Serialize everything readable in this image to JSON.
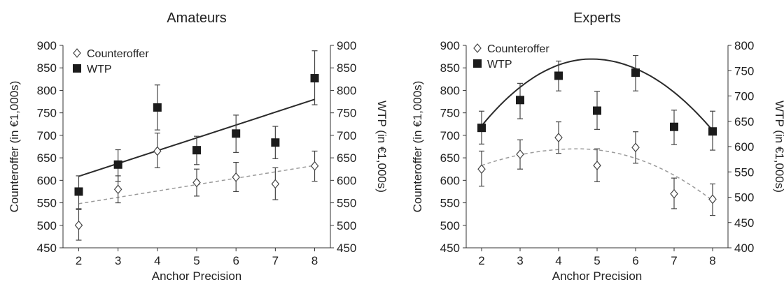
{
  "chart_data": [
    {
      "type": "scatter",
      "title": "Amateurs",
      "xlabel": "Anchor Precision",
      "ylabel": "Counteroffer (in €1,000s)",
      "ylabel_right": "WTP (in €1,000s)",
      "x": [
        2,
        3,
        4,
        5,
        6,
        7,
        8
      ],
      "xlim": [
        1.6,
        8.4
      ],
      "xticks": [
        2,
        3,
        4,
        5,
        6,
        7,
        8
      ],
      "ylim": [
        450,
        900
      ],
      "yticks": [
        450,
        500,
        550,
        600,
        650,
        700,
        750,
        800,
        850,
        900
      ],
      "ylim_right": [
        450,
        900
      ],
      "yticks_right": [
        450,
        500,
        550,
        600,
        650,
        700,
        750,
        800,
        850,
        900
      ],
      "legend": {
        "position": "top-left",
        "entries": [
          "Counteroffer",
          "WTP"
        ]
      },
      "series": [
        {
          "name": "Counteroffer",
          "axis": "left",
          "marker": "diamond-open",
          "values": [
            500,
            580,
            665,
            595,
            607,
            592,
            632
          ],
          "err_low": [
            467,
            550,
            628,
            565,
            575,
            557,
            598
          ],
          "err_high": [
            535,
            610,
            705,
            625,
            640,
            628,
            665
          ],
          "fit": {
            "style": "dashed",
            "kind": "linear",
            "x": [
              2,
              8
            ],
            "y": [
              548,
              633
            ]
          }
        },
        {
          "name": "WTP",
          "axis": "right",
          "marker": "square-filled",
          "values": [
            575,
            635,
            762,
            667,
            704,
            684,
            827
          ],
          "err_low": [
            537,
            598,
            712,
            635,
            662,
            648,
            768
          ],
          "err_high": [
            610,
            668,
            812,
            698,
            745,
            720,
            888
          ],
          "fit": {
            "style": "solid",
            "kind": "linear",
            "x": [
              2,
              8
            ],
            "y": [
              609,
              780
            ]
          }
        }
      ]
    },
    {
      "type": "scatter",
      "title": "Experts",
      "xlabel": "Anchor Precision",
      "ylabel": "Counteroffer (in €1,000s)",
      "ylabel_right": "WTP (in €1,000s)",
      "x": [
        2,
        3,
        4,
        5,
        6,
        7,
        8
      ],
      "xlim": [
        1.6,
        8.4
      ],
      "xticks": [
        2,
        3,
        4,
        5,
        6,
        7,
        8
      ],
      "ylim": [
        450,
        900
      ],
      "yticks": [
        450,
        500,
        550,
        600,
        650,
        700,
        750,
        800,
        850,
        900
      ],
      "ylim_right": [
        400,
        800
      ],
      "yticks_right": [
        400,
        450,
        500,
        550,
        600,
        650,
        700,
        750,
        800
      ],
      "legend": {
        "position": "top-left",
        "entries": [
          "Counteroffer",
          "WTP"
        ]
      },
      "series": [
        {
          "name": "Counteroffer",
          "axis": "left",
          "marker": "diamond-open",
          "values": [
            625,
            658,
            695,
            633,
            673,
            570,
            558
          ],
          "err_low": [
            587,
            625,
            660,
            597,
            638,
            537,
            522
          ],
          "err_high": [
            665,
            690,
            730,
            670,
            708,
            605,
            592
          ],
          "fit": {
            "style": "dashed",
            "kind": "quadratic",
            "vertex_x": 4.5,
            "vertex_y": 670,
            "at_x2": 633,
            "at_x8": 555
          }
        },
        {
          "name": "WTP",
          "axis": "right",
          "marker": "square-filled",
          "values": [
            637,
            692,
            740,
            671,
            746,
            639,
            630
          ],
          "err_low": [
            605,
            655,
            710,
            634,
            710,
            604,
            593
          ],
          "err_high": [
            670,
            725,
            769,
            709,
            780,
            672,
            670
          ],
          "fit": {
            "style": "solid",
            "kind": "quadratic",
            "vertex_x": 4.85,
            "vertex_y": 773,
            "at_x2": 641,
            "at_x8": 632
          }
        }
      ]
    }
  ]
}
